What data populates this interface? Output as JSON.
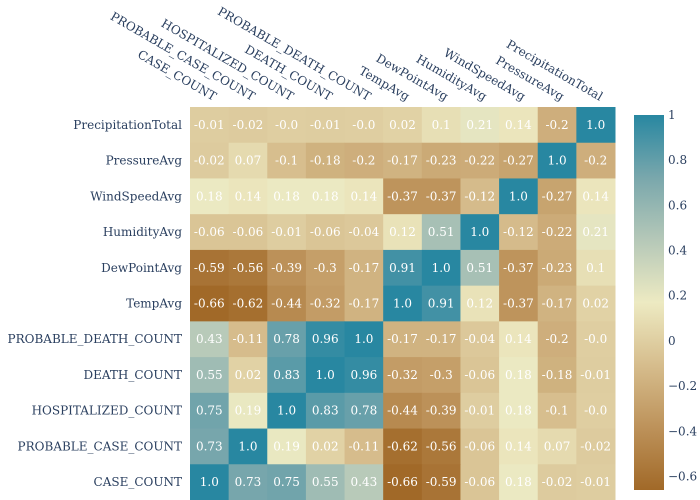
{
  "chart_data": {
    "type": "heatmap",
    "x_labels": [
      "CASE_COUNT",
      "PROBABLE_CASE_COUNT",
      "HOSPITALIZED_COUNT",
      "DEATH_COUNT",
      "PROBABLE_DEATH_COUNT",
      "TempAvg",
      "DewPointAvg",
      "HumidityAvg",
      "WindSpeedAvg",
      "PressureAvg",
      "PrecipitationTotal"
    ],
    "y_labels": [
      "PrecipitationTotal",
      "PressureAvg",
      "WindSpeedAvg",
      "HumidityAvg",
      "DewPointAvg",
      "TempAvg",
      "PROBABLE_DEATH_COUNT",
      "DEATH_COUNT",
      "HOSPITALIZED_COUNT",
      "PROBABLE_CASE_COUNT",
      "CASE_COUNT"
    ],
    "values": [
      [
        -0.01,
        -0.02,
        -0.0,
        -0.01,
        -0.0,
        0.02,
        0.1,
        0.21,
        0.14,
        -0.2,
        1.0
      ],
      [
        -0.02,
        0.07,
        -0.1,
        -0.18,
        -0.2,
        -0.17,
        -0.23,
        -0.22,
        -0.27,
        1.0,
        -0.2
      ],
      [
        0.18,
        0.14,
        0.18,
        0.18,
        0.14,
        -0.37,
        -0.37,
        -0.12,
        1.0,
        -0.27,
        0.14
      ],
      [
        -0.06,
        -0.06,
        -0.01,
        -0.06,
        -0.04,
        0.12,
        0.51,
        1.0,
        -0.12,
        -0.22,
        0.21
      ],
      [
        -0.59,
        -0.56,
        -0.39,
        -0.3,
        -0.17,
        0.91,
        1.0,
        0.51,
        -0.37,
        -0.23,
        0.1
      ],
      [
        -0.66,
        -0.62,
        -0.44,
        -0.32,
        -0.17,
        1.0,
        0.91,
        0.12,
        -0.37,
        -0.17,
        0.02
      ],
      [
        0.43,
        -0.11,
        0.78,
        0.96,
        1.0,
        -0.17,
        -0.17,
        -0.04,
        0.14,
        -0.2,
        -0.0
      ],
      [
        0.55,
        0.02,
        0.83,
        1.0,
        0.96,
        -0.32,
        -0.3,
        -0.06,
        0.18,
        -0.18,
        -0.01
      ],
      [
        0.75,
        0.19,
        1.0,
        0.83,
        0.78,
        -0.44,
        -0.39,
        -0.01,
        0.18,
        -0.1,
        -0.0
      ],
      [
        0.73,
        1.0,
        0.19,
        0.02,
        -0.11,
        -0.62,
        -0.56,
        -0.06,
        0.14,
        0.07,
        -0.02
      ],
      [
        1.0,
        0.73,
        0.75,
        0.55,
        0.43,
        -0.66,
        -0.59,
        -0.06,
        0.18,
        -0.02,
        -0.01
      ]
    ],
    "text": [
      [
        "-0.01",
        "-0.02",
        "-0.0",
        "-0.01",
        "-0.0",
        "0.02",
        "0.1",
        "0.21",
        "0.14",
        "-0.2",
        "1.0"
      ],
      [
        "-0.02",
        "0.07",
        "-0.1",
        "-0.18",
        "-0.2",
        "-0.17",
        "-0.23",
        "-0.22",
        "-0.27",
        "1.0",
        "-0.2"
      ],
      [
        "0.18",
        "0.14",
        "0.18",
        "0.18",
        "0.14",
        "-0.37",
        "-0.37",
        "-0.12",
        "1.0",
        "-0.27",
        "0.14"
      ],
      [
        "-0.06",
        "-0.06",
        "-0.01",
        "-0.06",
        "-0.04",
        "0.12",
        "0.51",
        "1.0",
        "-0.12",
        "-0.22",
        "0.21"
      ],
      [
        "-0.59",
        "-0.56",
        "-0.39",
        "-0.3",
        "-0.17",
        "0.91",
        "1.0",
        "0.51",
        "-0.37",
        "-0.23",
        "0.1"
      ],
      [
        "-0.66",
        "-0.62",
        "-0.44",
        "-0.32",
        "-0.17",
        "1.0",
        "0.91",
        "0.12",
        "-0.37",
        "-0.17",
        "0.02"
      ],
      [
        "0.43",
        "-0.11",
        "0.78",
        "0.96",
        "1.0",
        "-0.17",
        "-0.17",
        "-0.04",
        "0.14",
        "-0.2",
        "-0.0"
      ],
      [
        "0.55",
        "0.02",
        "0.83",
        "1.0",
        "0.96",
        "-0.32",
        "-0.3",
        "-0.06",
        "0.18",
        "-0.18",
        "-0.01"
      ],
      [
        "0.75",
        "0.19",
        "1.0",
        "0.83",
        "0.78",
        "-0.44",
        "-0.39",
        "-0.01",
        "0.18",
        "-0.1",
        "-0.0"
      ],
      [
        "0.73",
        "1.0",
        "0.19",
        "0.02",
        "-0.11",
        "-0.62",
        "-0.56",
        "-0.06",
        "0.14",
        "0.07",
        "-0.02"
      ],
      [
        "1.0",
        "0.73",
        "0.75",
        "0.55",
        "0.43",
        "-0.66",
        "-0.59",
        "-0.06",
        "0.18",
        "-0.02",
        "-0.01"
      ]
    ],
    "zmin": -0.66,
    "zmax": 1.0,
    "colorscale": [
      [
        0.0,
        "#a16928"
      ],
      [
        0.1667,
        "#bd925a"
      ],
      [
        0.3333,
        "#d6bd8d"
      ],
      [
        0.5,
        "#edeac2"
      ],
      [
        0.6667,
        "#b5c8b8"
      ],
      [
        0.8333,
        "#79a7ac"
      ],
      [
        1.0,
        "#2887a1"
      ]
    ],
    "colorbar_ticks": [
      1,
      0.8,
      0.6,
      0.4,
      0.2,
      0,
      -0.2,
      -0.4,
      -0.6
    ],
    "colorbar_tick_labels": [
      "1",
      "0.8",
      "0.6",
      "0.4",
      "0.2",
      "0",
      "−0.2",
      "−0.4",
      "−0.6"
    ],
    "text_color": "#ffffff",
    "label_color": "#2a3f5f"
  }
}
